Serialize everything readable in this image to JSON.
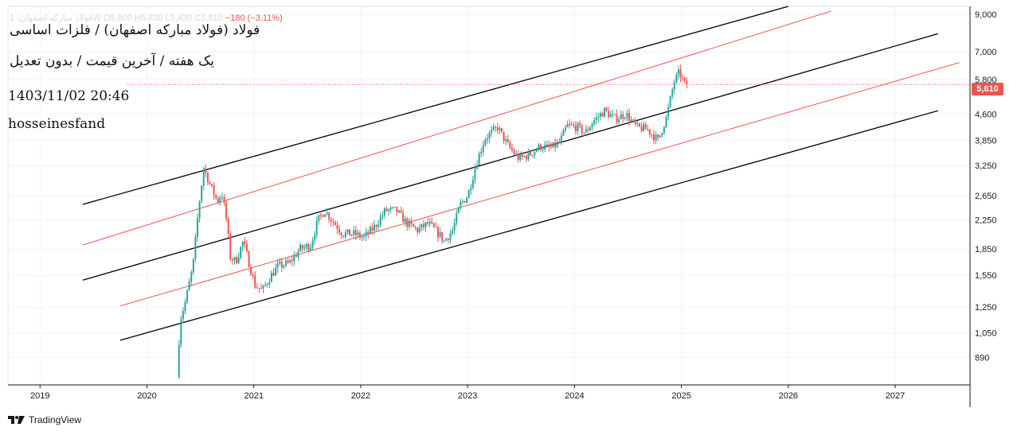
{
  "header": {
    "title": "فولاد (فولاد مبارکه اصفهان) / فلزات اساسی",
    "subtitle": "یک هفته / آخرین قیمت / بدون تعدیل",
    "datetime": "1403/11/02 20:46",
    "author": "hosseinesfand",
    "ohlc_line": "فولاد مبارکه اصفهان، 1W  O5,800  H5,830  L5,430  C5,610",
    "change": "−180 (−3.11%)"
  },
  "brand": {
    "name": "TradingView"
  },
  "last_price": {
    "label": "5,610",
    "value": 5610
  },
  "colors": {
    "up": "#26a69a",
    "down": "#ef5350",
    "channel_outer": "#000000",
    "channel_inner": "#ef5350",
    "badge": "#ef5350"
  },
  "chart_data": {
    "type": "candlestick",
    "scale": "log",
    "timeframe": "1W",
    "x_ticks": [
      "2019",
      "2020",
      "2021",
      "2022",
      "2023",
      "2024",
      "2025",
      "2026",
      "2027"
    ],
    "y_ticks": [
      "9,000",
      "7,000",
      "5,800",
      "4,600",
      "3,850",
      "3,250",
      "2,650",
      "2,250",
      "1,850",
      "1,550",
      "1,250",
      "1,050",
      "890"
    ],
    "xlim": [
      2018.7,
      2027.7
    ],
    "ylim": [
      740,
      9500
    ],
    "grid": true,
    "price_path": [
      [
        2020.3,
        780
      ],
      [
        2020.33,
        1150
      ],
      [
        2020.38,
        1300
      ],
      [
        2020.45,
        1650
      ],
      [
        2020.5,
        2400
      ],
      [
        2020.55,
        3200
      ],
      [
        2020.62,
        2800
      ],
      [
        2020.68,
        2550
      ],
      [
        2020.72,
        2700
      ],
      [
        2020.76,
        2300
      ],
      [
        2020.8,
        1750
      ],
      [
        2020.85,
        1700
      ],
      [
        2020.92,
        1950
      ],
      [
        2020.97,
        1700
      ],
      [
        2021.03,
        1450
      ],
      [
        2021.1,
        1400
      ],
      [
        2021.18,
        1550
      ],
      [
        2021.25,
        1650
      ],
      [
        2021.35,
        1680
      ],
      [
        2021.45,
        1850
      ],
      [
        2021.55,
        1900
      ],
      [
        2021.62,
        2250
      ],
      [
        2021.68,
        2400
      ],
      [
        2021.75,
        2250
      ],
      [
        2021.85,
        2050
      ],
      [
        2021.95,
        2050
      ],
      [
        2022.05,
        2000
      ],
      [
        2022.15,
        2150
      ],
      [
        2022.25,
        2400
      ],
      [
        2022.35,
        2400
      ],
      [
        2022.45,
        2200
      ],
      [
        2022.55,
        2100
      ],
      [
        2022.65,
        2200
      ],
      [
        2022.75,
        2050
      ],
      [
        2022.8,
        1950
      ],
      [
        2022.88,
        2100
      ],
      [
        2022.95,
        2500
      ],
      [
        2023.02,
        2650
      ],
      [
        2023.1,
        3300
      ],
      [
        2023.18,
        3900
      ],
      [
        2023.3,
        4200
      ],
      [
        2023.4,
        3700
      ],
      [
        2023.5,
        3400
      ],
      [
        2023.6,
        3500
      ],
      [
        2023.7,
        3700
      ],
      [
        2023.8,
        3650
      ],
      [
        2023.88,
        3800
      ],
      [
        2023.95,
        4250
      ],
      [
        2024.05,
        4200
      ],
      [
        2024.12,
        4050
      ],
      [
        2024.2,
        4400
      ],
      [
        2024.3,
        4700
      ],
      [
        2024.4,
        4450
      ],
      [
        2024.5,
        4600
      ],
      [
        2024.6,
        4200
      ],
      [
        2024.7,
        4150
      ],
      [
        2024.8,
        3850
      ],
      [
        2024.88,
        4500
      ],
      [
        2024.95,
        5700
      ],
      [
        2025.0,
        6100
      ],
      [
        2025.05,
        5610
      ]
    ],
    "channels": [
      {
        "name": "outer-top",
        "color": "#000000",
        "from": [
          2019.4,
          2500
        ],
        "to": [
          2026.0,
          9500
        ]
      },
      {
        "name": "inner-top",
        "color": "#ef5350",
        "from": [
          2019.4,
          1900
        ],
        "to": [
          2026.4,
          9200
        ]
      },
      {
        "name": "middle",
        "color": "#000000",
        "from": [
          2019.4,
          1500
        ],
        "to": [
          2027.4,
          7900
        ]
      },
      {
        "name": "inner-bottom",
        "color": "#ef5350",
        "from": [
          2019.75,
          1260
        ],
        "to": [
          2027.6,
          6500
        ]
      },
      {
        "name": "outer-bottom",
        "color": "#000000",
        "from": [
          2019.75,
          1000
        ],
        "to": [
          2027.4,
          4700
        ]
      }
    ]
  }
}
